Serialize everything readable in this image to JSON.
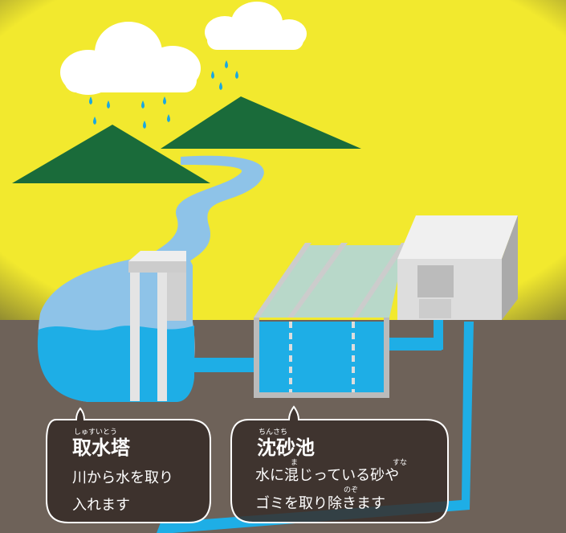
{
  "labels": [
    {
      "reading": "しゅすいとう",
      "title": "取水塔",
      "lines": [
        "川から水を取り",
        "入れます"
      ]
    },
    {
      "reading": "ちんさち",
      "title": "沈砂池",
      "lines": [
        "水に混じっている砂や",
        "ゴミを取り除きます"
      ],
      "furigana": [
        "ま",
        "すな",
        "のぞ"
      ]
    }
  ]
}
